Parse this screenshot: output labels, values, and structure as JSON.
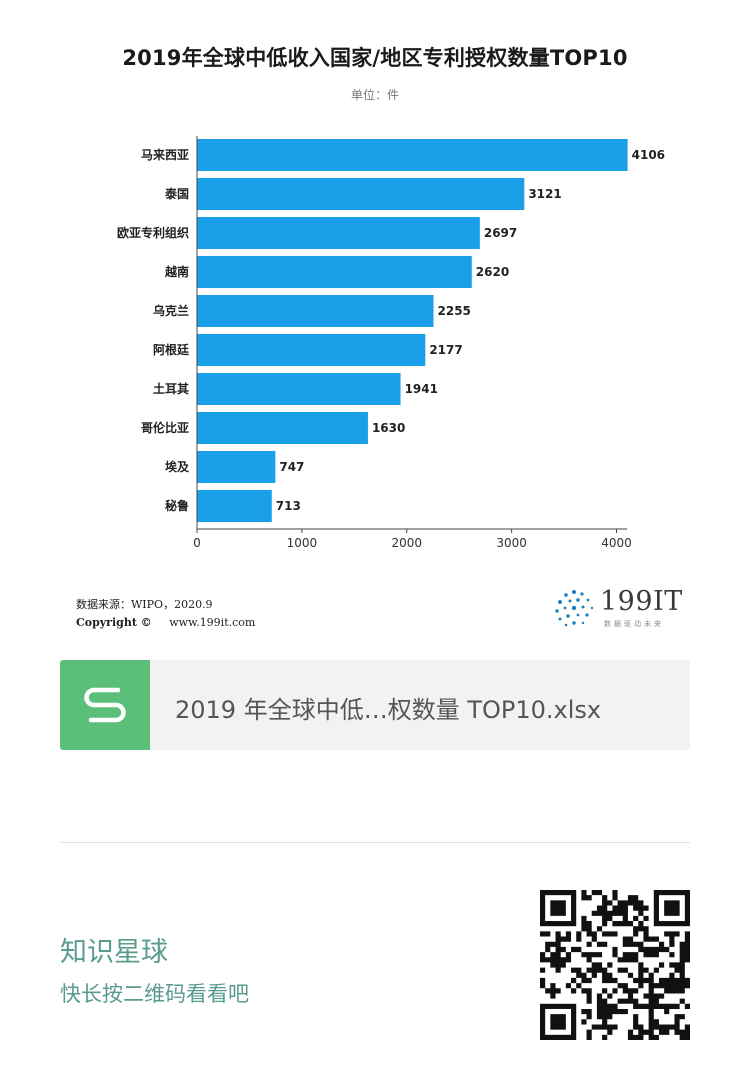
{
  "chart_data": {
    "type": "bar",
    "orientation": "horizontal",
    "title": "2019年全球中低收入国家/地区专利授权数量TOP10",
    "subtitle": "单位：件",
    "categories": [
      "马来西亚",
      "泰国",
      "欧亚专利组织",
      "越南",
      "乌克兰",
      "阿根廷",
      "土耳其",
      "哥伦比亚",
      "埃及",
      "秘鲁"
    ],
    "values": [
      4106,
      3121,
      2697,
      2620,
      2255,
      2177,
      1941,
      1630,
      747,
      713
    ],
    "xlim": [
      0,
      4100
    ],
    "xticks": [
      0,
      1000,
      2000,
      3000,
      4000
    ],
    "grid": false,
    "bar_color": "#1aa0e8"
  },
  "source": {
    "text": "数据来源：WIPO，2020.9",
    "copyright_label": "Copyright ©",
    "url": "www.199it.com"
  },
  "logo": {
    "text": "199IT",
    "sub": "数据驱动未来"
  },
  "file_card": {
    "icon": "spreadsheet-s-icon",
    "name": "2019 年全球中低…权数量 TOP10.xlsx",
    "icon_color": "#5bbf7a"
  },
  "planet": {
    "title": "知识星球",
    "subtitle": "快长按二维码看看吧",
    "color": "#5a9b8f"
  }
}
